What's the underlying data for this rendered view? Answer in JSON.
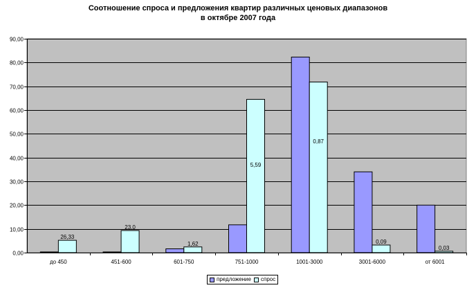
{
  "chart_data": {
    "type": "bar",
    "title_lines": [
      "Соотношение спроса и предложения квартир различных ценовых диапазонов",
      "в октябре 2007 года"
    ],
    "categories": [
      "до 450",
      "451-600",
      "601-750",
      "751-1000",
      "1001-3000",
      "3001-6000",
      "от 6001"
    ],
    "series": [
      {
        "name": "предложение",
        "color": "#9999ff",
        "values": [
          0.3,
          0.3,
          1.6,
          11.7,
          82.3,
          34.0,
          20.0
        ]
      },
      {
        "name": "спрос",
        "color": "#ccffff",
        "values": [
          5.2,
          9.3,
          2.4,
          64.5,
          71.8,
          3.2,
          0.6
        ]
      }
    ],
    "data_labels": [
      "26,33",
      "23,0",
      "1,62",
      "5,59",
      "0,87",
      "0,09",
      "0,03"
    ],
    "data_label_values": [
      5.2,
      9.3,
      2.4,
      35.5,
      45.5,
      3.2,
      0.6
    ],
    "y_ticks": [
      "0,00",
      "10,00",
      "20,00",
      "30,00",
      "40,00",
      "50,00",
      "60,00",
      "70,00",
      "80,00",
      "90,00"
    ],
    "ylim": [
      0,
      90
    ],
    "grid": true,
    "legend_position": "bottom",
    "plot_background": "#c0c0c0"
  }
}
